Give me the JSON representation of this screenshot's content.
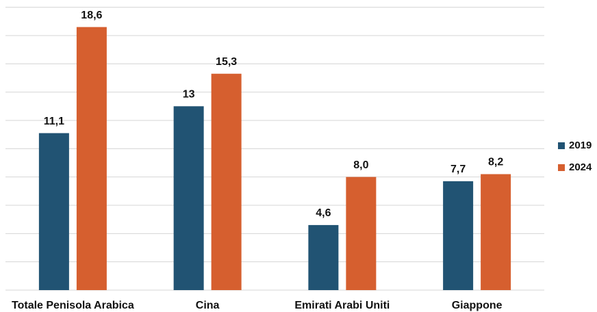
{
  "chart_data": {
    "type": "bar",
    "categories": [
      "Totale Penisola Arabica",
      "Cina",
      "Emirati Arabi Uniti",
      "Giappone"
    ],
    "series": [
      {
        "name": "2019",
        "color": "#215373",
        "values": [
          11.1,
          13,
          4.6,
          7.7
        ],
        "value_labels": [
          "11,1",
          "13",
          "4,6",
          "7,7"
        ]
      },
      {
        "name": "2024",
        "color": "#d65f2f",
        "values": [
          18.6,
          15.3,
          8.0,
          8.2
        ],
        "value_labels": [
          "18,6",
          "15,3",
          "8,0",
          "8,2"
        ]
      }
    ],
    "ylim": [
      0,
      20
    ],
    "yticks": [
      0,
      2,
      4,
      6,
      8,
      10,
      12,
      14,
      16,
      18,
      20
    ],
    "grid": true,
    "legend": "right"
  }
}
